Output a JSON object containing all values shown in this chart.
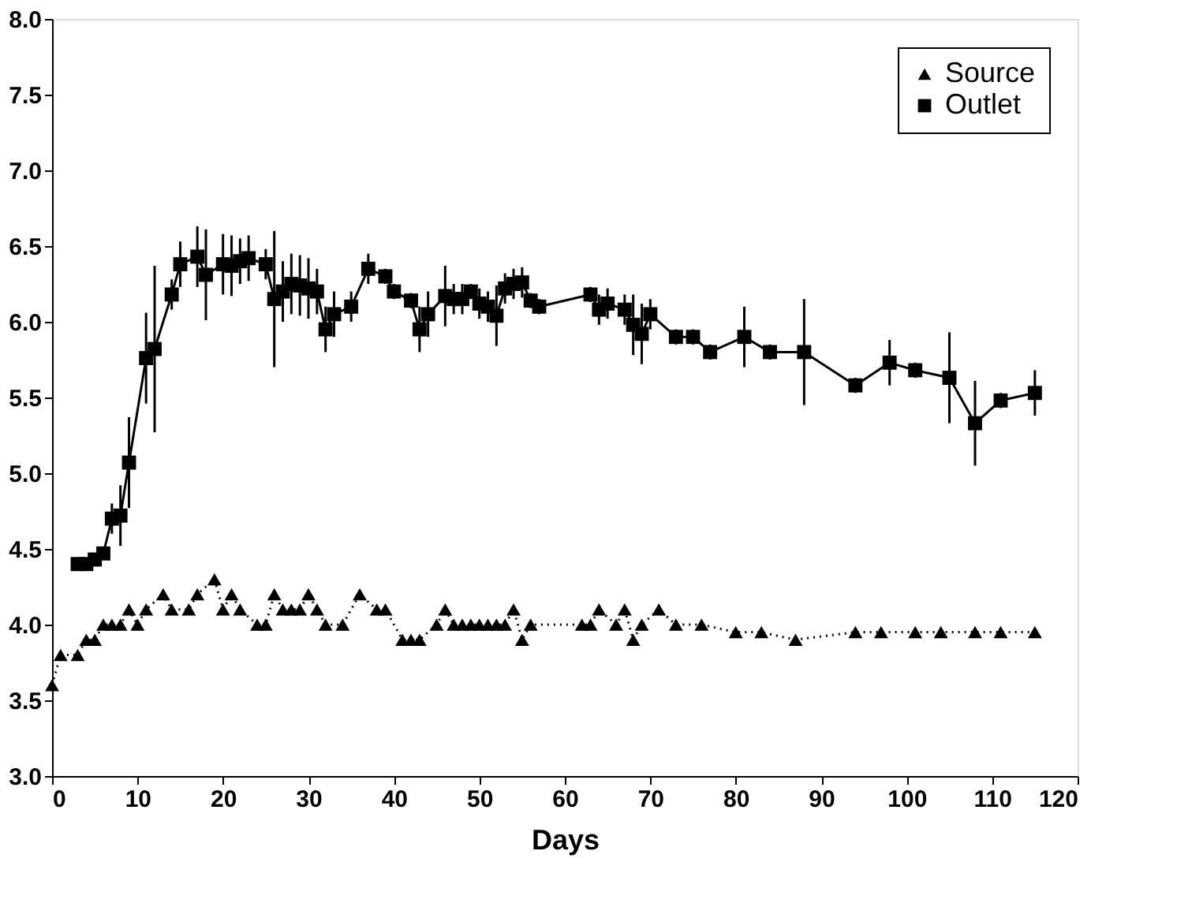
{
  "chart_data": {
    "type": "line",
    "xlabel": "Days",
    "xlim": [
      0,
      120
    ],
    "xticks": [
      0,
      10,
      20,
      30,
      40,
      50,
      60,
      70,
      80,
      90,
      100,
      110,
      120
    ],
    "ylim": [
      3.0,
      8.0
    ],
    "yticks": [
      {
        "value": 3,
        "label": "3.0"
      },
      3.5,
      {
        "value": 4,
        "label": "4.0"
      },
      4.5,
      {
        "value": 5,
        "label": "5.0"
      },
      5.5,
      {
        "value": 6,
        "label": "6.0"
      },
      6.5,
      {
        "value": 7,
        "label": "7.0"
      },
      7.5,
      {
        "value": 8,
        "label": "8.0"
      }
    ],
    "grid": false,
    "legend": "top right",
    "series": [
      {
        "name": "Source",
        "color": "#000000",
        "marker": "triangle",
        "line_style": "dotted",
        "x": [
          0,
          1,
          3,
          4,
          5,
          6,
          7,
          8,
          9,
          10,
          11,
          13,
          14,
          16,
          17,
          19,
          20,
          21,
          22,
          24,
          25,
          26,
          27,
          28,
          29,
          30,
          31,
          32,
          34,
          36,
          38,
          39,
          41,
          42,
          43,
          45,
          46,
          47,
          48,
          49,
          50,
          51,
          52,
          53,
          54,
          55,
          56,
          62,
          63,
          64,
          66,
          67,
          68,
          69,
          71,
          73,
          76,
          80,
          83,
          87,
          94,
          97,
          101,
          104,
          108,
          111,
          115
        ],
        "values": [
          3.6,
          3.8,
          3.8,
          3.9,
          3.9,
          4.0,
          4.0,
          4.0,
          4.1,
          4.0,
          4.1,
          4.2,
          4.1,
          4.1,
          4.2,
          4.3,
          4.1,
          4.2,
          4.1,
          4.0,
          4.0,
          4.2,
          4.1,
          4.1,
          4.1,
          4.2,
          4.1,
          4.0,
          4.0,
          4.2,
          4.1,
          4.1,
          3.9,
          3.9,
          3.9,
          4.0,
          4.1,
          4.0,
          4.0,
          4.0,
          4.0,
          4.0,
          4.0,
          4.0,
          4.1,
          3.9,
          4.0,
          4.0,
          4.0,
          4.1,
          4.0,
          4.1,
          3.9,
          4.0,
          4.1,
          4.0,
          4.0,
          3.95,
          3.95,
          3.9,
          3.95,
          3.95,
          3.95,
          3.95,
          3.95,
          3.95,
          3.95
        ]
      },
      {
        "name": "Outlet",
        "color": "#000000",
        "marker": "square",
        "line_style": "solid",
        "x": [
          3,
          4,
          5,
          6,
          7,
          8,
          9,
          11,
          12,
          14,
          15,
          17,
          18,
          20,
          21,
          22,
          23,
          25,
          26,
          27,
          28,
          29,
          30,
          31,
          32,
          33,
          35,
          37,
          39,
          40,
          42,
          43,
          44,
          46,
          47,
          48,
          49,
          50,
          51,
          52,
          53,
          54,
          55,
          56,
          57,
          63,
          64,
          65,
          67,
          68,
          69,
          70,
          73,
          75,
          77,
          81,
          84,
          88,
          94,
          98,
          101,
          105,
          108,
          111,
          115
        ],
        "values": [
          4.4,
          4.4,
          4.43,
          4.47,
          4.7,
          4.72,
          5.07,
          5.76,
          5.82,
          6.18,
          6.38,
          6.43,
          6.31,
          6.38,
          6.37,
          6.4,
          6.42,
          6.38,
          6.15,
          6.2,
          6.25,
          6.24,
          6.22,
          6.2,
          5.95,
          6.05,
          6.1,
          6.35,
          6.3,
          6.2,
          6.14,
          5.95,
          6.05,
          6.17,
          6.15,
          6.15,
          6.2,
          6.12,
          6.1,
          6.04,
          6.22,
          6.25,
          6.26,
          6.14,
          6.1,
          6.18,
          6.08,
          6.12,
          6.08,
          5.98,
          5.92,
          6.05,
          5.9,
          5.9,
          5.8,
          5.9,
          5.8,
          5.8,
          5.58,
          5.73,
          5.68,
          5.63,
          5.33,
          5.48,
          5.53
        ],
        "errors": [
          null,
          null,
          null,
          null,
          0.1,
          0.2,
          0.3,
          0.3,
          0.55,
          0.1,
          0.15,
          0.2,
          0.3,
          0.2,
          0.2,
          0.15,
          0.15,
          0.1,
          0.45,
          0.2,
          0.2,
          0.2,
          0.2,
          0.15,
          0.15,
          0.15,
          0.1,
          0.1,
          0.05,
          0.05,
          0.05,
          0.15,
          0.15,
          0.2,
          0.1,
          0.1,
          0.05,
          0.1,
          0.1,
          0.2,
          0.1,
          0.1,
          0.1,
          0.05,
          0.05,
          0.05,
          0.1,
          0.1,
          0.1,
          0.2,
          0.2,
          0.1,
          0.05,
          0.05,
          0.05,
          0.2,
          0.05,
          0.35,
          0.05,
          0.15,
          0.05,
          0.3,
          0.28,
          0.05,
          0.15
        ]
      }
    ]
  }
}
